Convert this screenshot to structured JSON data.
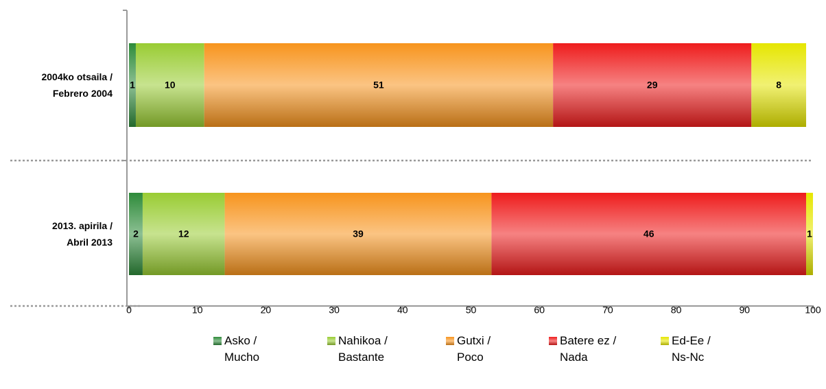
{
  "chart_data": {
    "type": "stacked_barh",
    "categories": [
      "2004ko otsaila /\nFebrero 2004",
      "2013. apirila /\nAbril 2013"
    ],
    "series": [
      {
        "name": "Asko /\nMucho",
        "color": "#2e8b3a",
        "values": [
          1,
          2
        ]
      },
      {
        "name": "Nahikoa /\nBastante",
        "color": "#99cc33",
        "values": [
          10,
          12
        ]
      },
      {
        "name": "Gutxi /\nPoco",
        "color": "#f7941d",
        "values": [
          51,
          39
        ]
      },
      {
        "name": "Batere ez /\nNada",
        "color": "#ee1c1c",
        "values": [
          29,
          46
        ]
      },
      {
        "name": "Ed-Ee /\nNs-Nc",
        "color": "#e6e600",
        "values": [
          8,
          1
        ]
      }
    ],
    "xlim": [
      0,
      100
    ],
    "xticks": [
      0,
      10,
      20,
      30,
      40,
      50,
      60,
      70,
      80,
      90,
      100
    ],
    "legend": "bottom"
  }
}
